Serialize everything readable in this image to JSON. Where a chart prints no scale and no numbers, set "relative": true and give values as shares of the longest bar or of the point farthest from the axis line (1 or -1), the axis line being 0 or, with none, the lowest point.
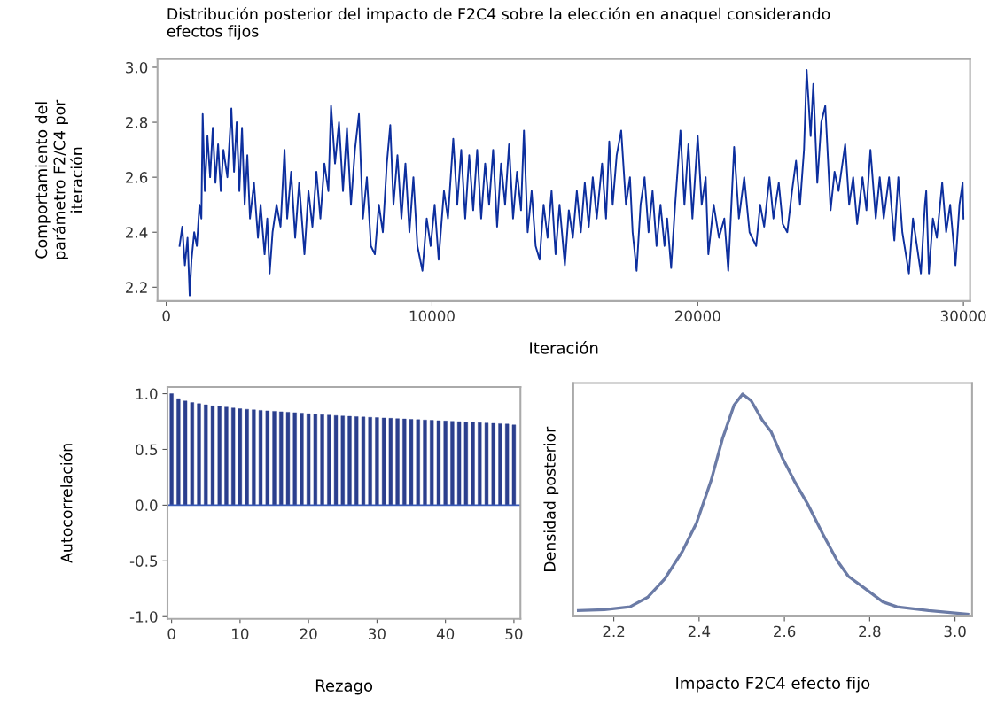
{
  "chart_data": [
    {
      "type": "line",
      "title": "Distribución posterior del impacto de F2C4 sobre la elección en anaquel considerando\nefectos fijos",
      "xlabel": "Iteración",
      "ylabel": "Comportamiento del\nparámetro F2/C4 por\niteración",
      "color": "#0d2f9e",
      "xlim": [
        -330,
        30250
      ],
      "ylim": [
        2.15,
        3.03
      ],
      "xticks": [
        0,
        10000,
        20000,
        30000
      ],
      "yticks": [
        2.2,
        2.4,
        2.6,
        2.8,
        {
          "value": 3.0,
          "label": "3.0"
        }
      ],
      "x": [
        500,
        600,
        700,
        800,
        880,
        950,
        1050,
        1150,
        1250,
        1320,
        1370,
        1450,
        1550,
        1650,
        1750,
        1850,
        1950,
        2050,
        2150,
        2300,
        2450,
        2550,
        2650,
        2750,
        2850,
        2950,
        3050,
        3150,
        3300,
        3450,
        3550,
        3700,
        3800,
        3890,
        4000,
        4150,
        4300,
        4450,
        4550,
        4700,
        4850,
        5000,
        5200,
        5350,
        5500,
        5650,
        5800,
        5950,
        6100,
        6200,
        6350,
        6500,
        6650,
        6800,
        6950,
        7100,
        7250,
        7400,
        7550,
        7700,
        7850,
        8000,
        8150,
        8300,
        8430,
        8550,
        8700,
        8850,
        9000,
        9150,
        9300,
        9450,
        9640,
        9800,
        9950,
        10100,
        10250,
        10450,
        10600,
        10800,
        10950,
        11100,
        11250,
        11400,
        11550,
        11700,
        11850,
        12000,
        12150,
        12300,
        12450,
        12600,
        12750,
        12900,
        13050,
        13200,
        13350,
        13460,
        13600,
        13750,
        13900,
        14050,
        14200,
        14350,
        14500,
        14650,
        14800,
        15000,
        15150,
        15300,
        15450,
        15600,
        15750,
        15900,
        16050,
        16200,
        16400,
        16550,
        16670,
        16800,
        16950,
        17120,
        17300,
        17450,
        17550,
        17700,
        17850,
        18000,
        18150,
        18300,
        18450,
        18600,
        18750,
        18850,
        19000,
        19150,
        19350,
        19500,
        19650,
        19800,
        20000,
        20150,
        20300,
        20400,
        20600,
        20800,
        21000,
        21150,
        21370,
        21550,
        21750,
        21950,
        22200,
        22350,
        22500,
        22700,
        22850,
        23050,
        23200,
        23370,
        23550,
        23700,
        23850,
        24000,
        24100,
        24250,
        24350,
        24500,
        24650,
        24800,
        25000,
        25150,
        25300,
        25550,
        25700,
        25850,
        26000,
        26200,
        26350,
        26500,
        26700,
        26850,
        27000,
        27200,
        27400,
        27550,
        27700,
        27950,
        28100,
        28250,
        28400,
        28550,
        28600,
        28700,
        28850,
        29000,
        29200,
        29350,
        29500,
        29700,
        29850,
        29970,
        30000
      ],
      "values": [
        2.35,
        2.42,
        2.28,
        2.38,
        2.17,
        2.3,
        2.4,
        2.35,
        2.5,
        2.45,
        2.83,
        2.55,
        2.75,
        2.6,
        2.78,
        2.58,
        2.72,
        2.55,
        2.7,
        2.6,
        2.85,
        2.62,
        2.8,
        2.55,
        2.78,
        2.5,
        2.68,
        2.45,
        2.58,
        2.38,
        2.5,
        2.32,
        2.45,
        2.25,
        2.4,
        2.5,
        2.42,
        2.7,
        2.45,
        2.62,
        2.38,
        2.58,
        2.32,
        2.55,
        2.42,
        2.62,
        2.45,
        2.65,
        2.55,
        2.86,
        2.65,
        2.8,
        2.55,
        2.78,
        2.5,
        2.7,
        2.83,
        2.45,
        2.6,
        2.35,
        2.32,
        2.5,
        2.4,
        2.65,
        2.79,
        2.5,
        2.68,
        2.45,
        2.65,
        2.4,
        2.6,
        2.35,
        2.26,
        2.45,
        2.35,
        2.5,
        2.3,
        2.55,
        2.45,
        2.74,
        2.5,
        2.7,
        2.45,
        2.68,
        2.48,
        2.7,
        2.45,
        2.65,
        2.5,
        2.7,
        2.42,
        2.65,
        2.5,
        2.72,
        2.45,
        2.62,
        2.48,
        2.77,
        2.4,
        2.55,
        2.35,
        2.3,
        2.5,
        2.38,
        2.55,
        2.32,
        2.5,
        2.28,
        2.48,
        2.38,
        2.55,
        2.4,
        2.58,
        2.42,
        2.6,
        2.45,
        2.65,
        2.45,
        2.73,
        2.5,
        2.68,
        2.77,
        2.5,
        2.6,
        2.4,
        2.26,
        2.5,
        2.6,
        2.4,
        2.55,
        2.35,
        2.5,
        2.35,
        2.45,
        2.27,
        2.5,
        2.77,
        2.5,
        2.72,
        2.45,
        2.75,
        2.5,
        2.6,
        2.32,
        2.5,
        2.38,
        2.45,
        2.26,
        2.71,
        2.45,
        2.6,
        2.4,
        2.35,
        2.5,
        2.42,
        2.6,
        2.45,
        2.58,
        2.43,
        2.4,
        2.55,
        2.66,
        2.5,
        2.7,
        2.99,
        2.75,
        2.94,
        2.58,
        2.8,
        2.86,
        2.48,
        2.62,
        2.55,
        2.72,
        2.5,
        2.6,
        2.43,
        2.6,
        2.48,
        2.7,
        2.45,
        2.6,
        2.45,
        2.6,
        2.37,
        2.6,
        2.4,
        2.25,
        2.45,
        2.35,
        2.25,
        2.5,
        2.55,
        2.25,
        2.45,
        2.38,
        2.58,
        2.4,
        2.5,
        2.28,
        2.5,
        2.58,
        2.45
      ]
    },
    {
      "type": "bar",
      "xlabel": "Rezago",
      "ylabel": "Autocorrelación",
      "color": "#2b3f8e",
      "xlim": [
        -0.6,
        50.95
      ],
      "ylim": [
        -1.02,
        1.06
      ],
      "xticks": [
        0,
        10,
        20,
        30,
        40,
        50
      ],
      "yticks": [
        {
          "value": -1.0,
          "label": "-1.0"
        },
        {
          "value": -0.5,
          "label": "-0.5"
        },
        {
          "value": 0.0,
          "label": "0.0"
        },
        {
          "value": 0.5,
          "label": "0.5"
        },
        {
          "value": 1.0,
          "label": "1.0"
        }
      ],
      "ref_lines": [
        {
          "axis": "y",
          "value": 0,
          "color": "#3a5bb8"
        }
      ],
      "x": [
        0,
        1,
        2,
        3,
        4,
        5,
        6,
        7,
        8,
        9,
        10,
        11,
        12,
        13,
        14,
        15,
        16,
        17,
        18,
        19,
        20,
        21,
        22,
        23,
        24,
        25,
        26,
        27,
        28,
        29,
        30,
        31,
        32,
        33,
        34,
        35,
        36,
        37,
        38,
        39,
        40,
        41,
        42,
        43,
        44,
        45,
        46,
        47,
        48,
        49,
        50
      ],
      "values": [
        1.0,
        0.955,
        0.935,
        0.92,
        0.91,
        0.9,
        0.89,
        0.885,
        0.88,
        0.872,
        0.865,
        0.86,
        0.855,
        0.85,
        0.846,
        0.842,
        0.838,
        0.834,
        0.83,
        0.826,
        0.82,
        0.816,
        0.812,
        0.808,
        0.804,
        0.8,
        0.797,
        0.794,
        0.791,
        0.788,
        0.785,
        0.782,
        0.779,
        0.776,
        0.773,
        0.77,
        0.767,
        0.764,
        0.761,
        0.758,
        0.755,
        0.752,
        0.749,
        0.746,
        0.743,
        0.74,
        0.737,
        0.734,
        0.731,
        0.728,
        0.72
      ]
    },
    {
      "type": "line",
      "relative": true,
      "tick_labels": "x",
      "xlabel": "Impacto F2C4 efecto fijo",
      "ylabel": "Densidad posterior",
      "color": "#6b7ba6",
      "xlim": [
        2.105,
        3.04
      ],
      "xticks": [
        2.2,
        2.4,
        2.6,
        2.8,
        {
          "value": 3.0,
          "label": "3.0"
        }
      ],
      "x": [
        2.117,
        2.178,
        2.238,
        2.279,
        2.32,
        2.36,
        2.394,
        2.428,
        2.455,
        2.482,
        2.502,
        2.522,
        2.549,
        2.569,
        2.596,
        2.623,
        2.656,
        2.69,
        2.724,
        2.75,
        2.79,
        2.831,
        2.864,
        2.938,
        3.03
      ],
      "values": [
        0.026,
        0.03,
        0.043,
        0.085,
        0.17,
        0.29,
        0.42,
        0.61,
        0.8,
        0.95,
        1.0,
        0.97,
        0.88,
        0.83,
        0.71,
        0.61,
        0.5,
        0.37,
        0.25,
        0.18,
        0.124,
        0.065,
        0.043,
        0.026,
        0.01
      ]
    }
  ]
}
